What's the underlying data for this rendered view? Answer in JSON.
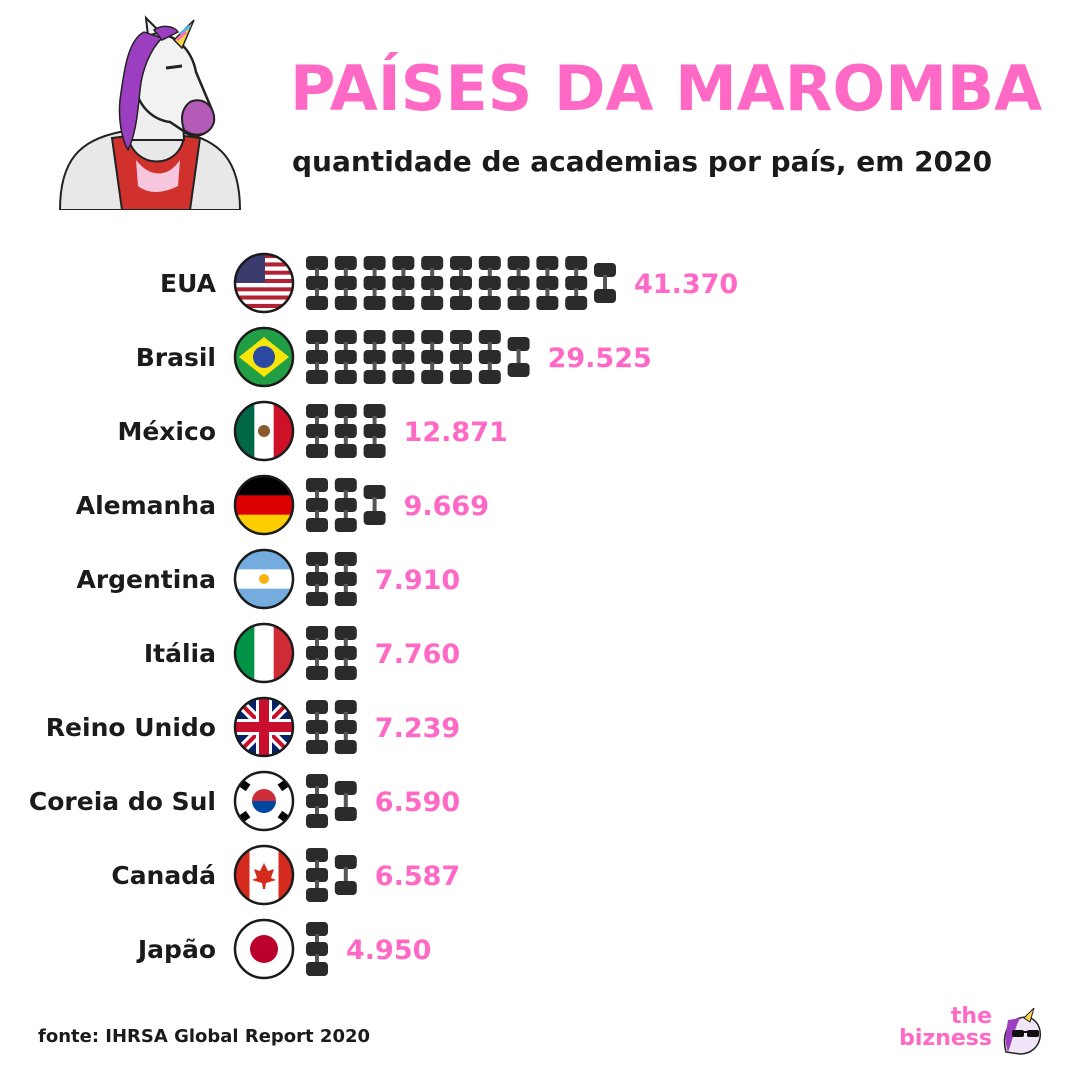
{
  "header": {
    "title": "PAÍSES DA MAROMBA",
    "subtitle": "quantidade de academias por país, em 2020"
  },
  "footer": {
    "source": "fonte: IHRSA Global Report 2020",
    "brand_line1": "the",
    "brand_line2": "bizness"
  },
  "colors": {
    "accent": "#ff69c6",
    "text": "#1b1b1b",
    "dumbbell": "#2b2b2b"
  },
  "chart_data": {
    "type": "bar",
    "style": "pictogram",
    "icon": "dumbbell-icon",
    "categories": [
      "EUA",
      "Brasil",
      "México",
      "Alemanha",
      "Argentina",
      "Itália",
      "Reino Unido",
      "Coreia do Sul",
      "Canadá",
      "Japão"
    ],
    "values": [
      41370,
      29525,
      12871,
      9669,
      7910,
      7760,
      7239,
      6590,
      6587,
      4950
    ],
    "value_labels": [
      "41.370",
      "29.525",
      "12.871",
      "9.669",
      "7.910",
      "7.760",
      "7.239",
      "6.590",
      "6.587",
      "4.950"
    ],
    "flags": [
      "usa-flag-icon",
      "brazil-flag-icon",
      "mexico-flag-icon",
      "germany-flag-icon",
      "argentina-flag-icon",
      "italy-flag-icon",
      "uk-flag-icon",
      "south-korea-flag-icon",
      "canada-flag-icon",
      "japan-flag-icon"
    ],
    "title": "PAÍSES DA MAROMBA",
    "subtitle": "quantidade de academias por país, em 2020",
    "xlabel": "",
    "ylabel": "",
    "grid": false,
    "legend": "none"
  }
}
